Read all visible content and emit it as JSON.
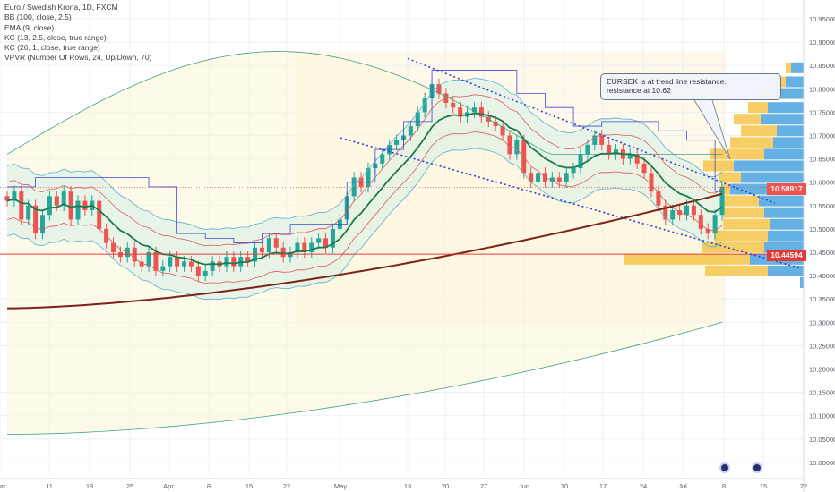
{
  "legend": {
    "title": "Euro / Swedish Krona, 1D, FXCM",
    "indicators": [
      "BB (100, close, 2.5)",
      "EMA (9, close)",
      "KC (13, 2.5, close, true range)",
      "KC (26, 1, close, true range)",
      "VPVR (Number Of Rows, 24, Up/Down, 70)"
    ]
  },
  "annotation": {
    "line1": "EURSEK is at trend line resistance.",
    "line2": "resistance at 10.62"
  },
  "price_tags": {
    "current": "10.58917",
    "horizontal": "10.44594"
  },
  "colors": {
    "up": "#26a69a",
    "down": "#ef5350",
    "ema": "#1b7a4b",
    "ma_long": "#7a2416",
    "kc_line": "#e05a5a",
    "bb_line": "#56b0cf",
    "step_line": "#3f4ad1",
    "trend": "#2e3fd6",
    "vp_up": "#4aa3df",
    "vp_down": "#f6c54a",
    "hline": "#e53935"
  },
  "chart_data": {
    "type": "candlestick",
    "symbol": "EURSEK",
    "title": "Euro / Swedish Krona, 1D, FXCM",
    "ylim": [
      9.99,
      10.96
    ],
    "yticks": [
      "10.95000",
      "10.90000",
      "10.85000",
      "10.80000",
      "10.75000",
      "10.70000",
      "10.65000",
      "10.60000",
      "10.55000",
      "10.50000",
      "10.45000",
      "10.40000",
      "10.35000",
      "10.30000",
      "10.25000",
      "10.20000",
      "10.15000",
      "10.10000",
      "10.05000",
      "10.00000"
    ],
    "xticks": [
      "Mar",
      "11",
      "18",
      "25",
      "Apr",
      "8",
      "15",
      "22",
      "May",
      "13",
      "20",
      "27",
      "Jun",
      "10",
      "17",
      "24",
      "Jul",
      "8",
      "15",
      "22"
    ],
    "candles_close": [
      10.56,
      10.58,
      10.52,
      10.55,
      10.49,
      10.53,
      10.57,
      10.55,
      10.58,
      10.52,
      10.56,
      10.54,
      10.56,
      10.5,
      10.47,
      10.45,
      10.44,
      10.46,
      10.43,
      10.42,
      10.45,
      10.41,
      10.42,
      10.44,
      10.42,
      10.43,
      10.42,
      10.4,
      10.41,
      10.43,
      10.42,
      10.44,
      10.42,
      10.44,
      10.43,
      10.46,
      10.45,
      10.48,
      10.46,
      10.44,
      10.45,
      10.47,
      10.45,
      10.47,
      10.48,
      10.46,
      10.5,
      10.52,
      10.57,
      10.61,
      10.59,
      10.63,
      10.64,
      10.66,
      10.68,
      10.69,
      10.7,
      10.72,
      10.75,
      10.78,
      10.81,
      10.79,
      10.77,
      10.76,
      10.74,
      10.75,
      10.76,
      10.74,
      10.73,
      10.72,
      10.7,
      10.66,
      10.69,
      10.62,
      10.6,
      10.62,
      10.6,
      10.61,
      10.6,
      10.62,
      10.63,
      10.66,
      10.68,
      10.7,
      10.68,
      10.66,
      10.67,
      10.65,
      10.66,
      10.64,
      10.62,
      10.58,
      10.55,
      10.52,
      10.54,
      10.53,
      10.55,
      10.53,
      10.5,
      10.49,
      10.53,
      10.59
    ],
    "ema_last": 10.555,
    "ma_long_last": 10.575,
    "horizontal_level": 10.44594,
    "trend_lines": [
      {
        "from": [
          "May 13",
          10.865
        ],
        "to": [
          "Jul 15",
          10.555
        ],
        "style": "dotted"
      },
      {
        "from": [
          "May 1",
          10.695
        ],
        "to": [
          "Jul 22",
          10.415
        ],
        "style": "dotted"
      }
    ],
    "volume_profile": "right-side horizontal histogram, blue up / yellow down volume"
  }
}
